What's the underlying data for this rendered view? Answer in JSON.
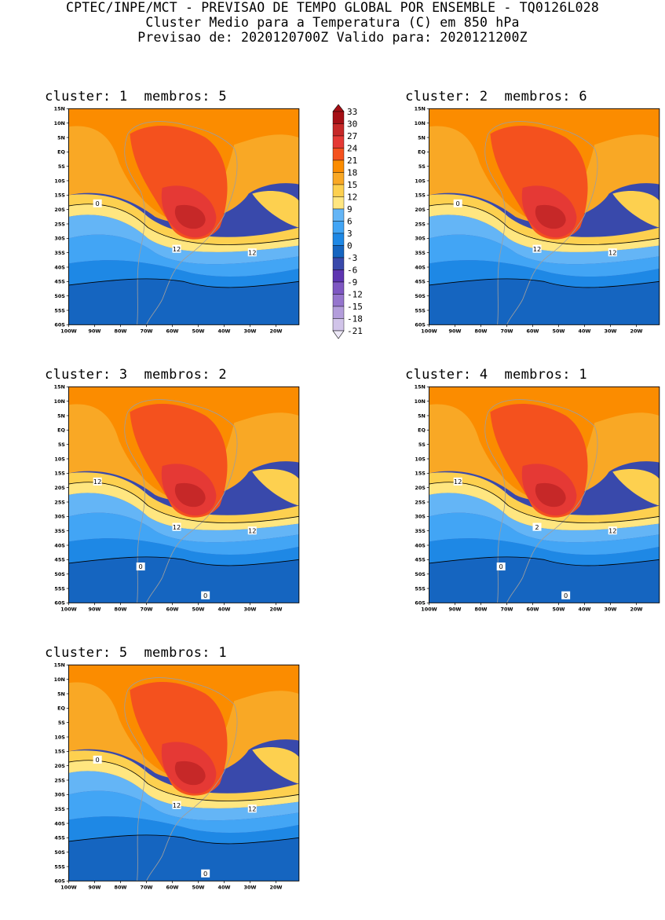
{
  "header": {
    "line1": "CPTEC/INPE/MCT - PREVISAO DE TEMPO GLOBAL POR ENSEMBLE - TQ0126L028",
    "line2": "Cluster Medio para a Temperatura (C) em 850 hPa",
    "line3": "Previsao de: 2020120700Z   Valido para: 2020121200Z"
  },
  "panels": [
    {
      "title": "cluster: 1  membros: 5",
      "contours": [
        "12",
        "12",
        "0"
      ]
    },
    {
      "title": "cluster: 2  membros: 6",
      "contours": [
        "12",
        "12",
        "0"
      ]
    },
    {
      "title": "cluster: 3  membros: 2",
      "contours": [
        "12",
        "12",
        "12",
        "0",
        "0"
      ]
    },
    {
      "title": "cluster: 4  membros: 1",
      "contours": [
        "2",
        "12",
        "12",
        "0",
        "0"
      ]
    },
    {
      "title": "cluster: 5  membros: 1",
      "contours": [
        "12",
        "12",
        "0",
        "0"
      ]
    }
  ],
  "lat_labels": [
    "15N",
    "10N",
    "5N",
    "EQ",
    "5S",
    "10S",
    "15S",
    "20S",
    "25S",
    "30S",
    "35S",
    "40S",
    "45S",
    "50S",
    "55S",
    "60S"
  ],
  "lon_labels": [
    "100W",
    "90W",
    "80W",
    "70W",
    "60W",
    "50W",
    "40W",
    "30W",
    "20W"
  ],
  "colorbar": {
    "labels": [
      "33",
      "30",
      "27",
      "24",
      "21",
      "18",
      "15",
      "12",
      "9",
      "6",
      "3",
      "0",
      "-3",
      "-6",
      "-9",
      "-12",
      "-15",
      "-18",
      "-21"
    ],
    "colors": [
      "#a50f15",
      "#c62828",
      "#e53935",
      "#f4511e",
      "#fb8c00",
      "#f9a825",
      "#fdd04f",
      "#ffe680",
      "#64b5f6",
      "#42a5f5",
      "#1e88e5",
      "#1565c0",
      "#3949ab",
      "#5e35b1",
      "#7e57c2",
      "#9575cd",
      "#b39ddb",
      "#d1c4e9"
    ]
  },
  "colors": {
    "band_hot": "#c62828",
    "band_warm_red": "#e53935",
    "band_orange_red": "#f4511e",
    "band_orange": "#fb8c00",
    "band_amber": "#f9a825",
    "band_yellow": "#fdd04f",
    "band_light_yellow": "#ffe680",
    "band_light_blue": "#64b5f6",
    "band_blue": "#42a5f5",
    "band_mid_blue": "#1e88e5",
    "band_dark_blue": "#1565c0",
    "band_indigo": "#3949ab",
    "land_outline": "#9e9e9e"
  }
}
